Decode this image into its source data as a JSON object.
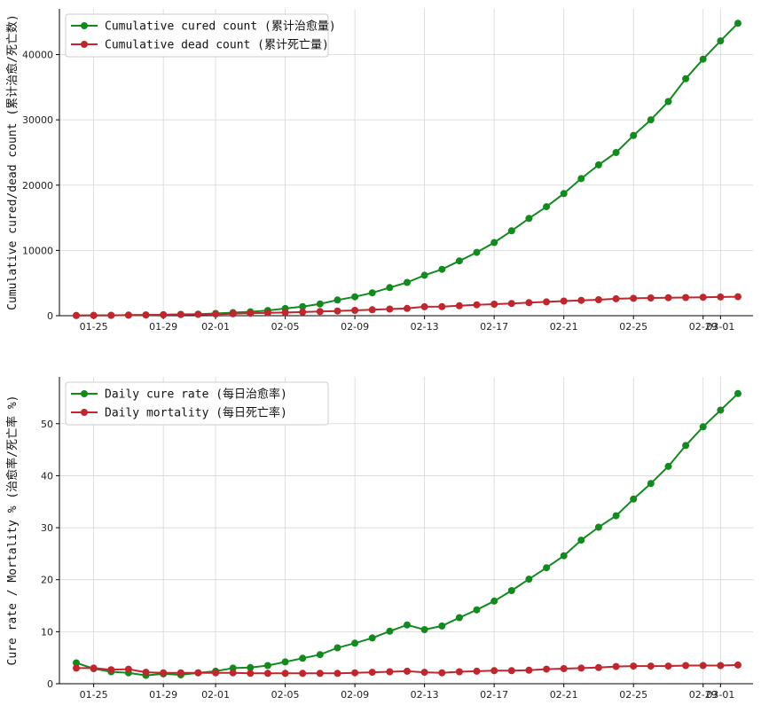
{
  "chart_data": [
    {
      "type": "line",
      "ylabel": "Cumulative cured/dead count (累计治愈/死亡数)",
      "ylim": [
        0,
        47000
      ],
      "yticks": [
        0,
        10000,
        20000,
        30000,
        40000
      ],
      "grid": true,
      "legend_position": "top-left",
      "x": [
        "01-24",
        "01-25",
        "01-26",
        "01-27",
        "01-28",
        "01-29",
        "01-30",
        "01-31",
        "02-01",
        "02-02",
        "02-03",
        "02-04",
        "02-05",
        "02-06",
        "02-07",
        "02-08",
        "02-09",
        "02-10",
        "02-11",
        "02-12",
        "02-13",
        "02-14",
        "02-15",
        "02-16",
        "02-17",
        "02-18",
        "02-19",
        "02-20",
        "02-21",
        "02-22",
        "02-23",
        "02-24",
        "02-25",
        "02-26",
        "02-27",
        "02-28",
        "02-29",
        "03-01",
        "03-02"
      ],
      "xtick_labels": [
        "01-25",
        "01-29",
        "02-01",
        "02-05",
        "02-09",
        "02-13",
        "02-17",
        "02-21",
        "02-25",
        "02-29",
        "03-01"
      ],
      "series": [
        {
          "name": "Cumulative cured count (累计治愈量)",
          "color": "#128a1e",
          "values": [
            40,
            50,
            60,
            100,
            120,
            150,
            200,
            250,
            340,
            470,
            600,
            800,
            1100,
            1400,
            1800,
            2400,
            2900,
            3500,
            4300,
            5100,
            6200,
            7100,
            8400,
            9700,
            11200,
            13000,
            14900,
            16700,
            18700,
            21000,
            23100,
            25000,
            27600,
            30000,
            32800,
            36300,
            39300,
            42100,
            44800
          ]
        },
        {
          "name": "Cumulative dead count (累计死亡量)",
          "color": "#c0262d",
          "values": [
            25,
            40,
            55,
            80,
            105,
            130,
            170,
            210,
            250,
            300,
            360,
            430,
            490,
            560,
            640,
            720,
            810,
            910,
            1020,
            1110,
            1370,
            1380,
            1520,
            1670,
            1770,
            1870,
            2000,
            2120,
            2240,
            2350,
            2440,
            2590,
            2660,
            2710,
            2760,
            2790,
            2830,
            2870,
            2910
          ]
        }
      ]
    },
    {
      "type": "line",
      "ylabel": "Cure rate / Mortality % (治愈率/死亡率 %)",
      "ylim": [
        0,
        59
      ],
      "yticks": [
        0,
        10,
        20,
        30,
        40,
        50
      ],
      "grid": true,
      "legend_position": "top-left",
      "x": [
        "01-24",
        "01-25",
        "01-26",
        "01-27",
        "01-28",
        "01-29",
        "01-30",
        "01-31",
        "02-01",
        "02-02",
        "02-03",
        "02-04",
        "02-05",
        "02-06",
        "02-07",
        "02-08",
        "02-09",
        "02-10",
        "02-11",
        "02-12",
        "02-13",
        "02-14",
        "02-15",
        "02-16",
        "02-17",
        "02-18",
        "02-19",
        "02-20",
        "02-21",
        "02-22",
        "02-23",
        "02-24",
        "02-25",
        "02-26",
        "02-27",
        "02-28",
        "02-29",
        "03-01",
        "03-02"
      ],
      "xtick_labels": [
        "01-25",
        "01-29",
        "02-01",
        "02-05",
        "02-09",
        "02-13",
        "02-17",
        "02-21",
        "02-25",
        "02-29",
        "03-01"
      ],
      "series": [
        {
          "name": "Daily cure rate (每日治愈率)",
          "color": "#128a1e",
          "values": [
            4.0,
            2.9,
            2.3,
            2.1,
            1.6,
            1.9,
            1.7,
            2.1,
            2.4,
            3.0,
            3.1,
            3.5,
            4.2,
            4.9,
            5.6,
            6.9,
            7.8,
            8.8,
            10.1,
            11.3,
            10.4,
            11.1,
            12.7,
            14.2,
            15.9,
            17.9,
            20.1,
            22.3,
            24.6,
            27.6,
            30.1,
            32.3,
            35.5,
            38.5,
            41.8,
            45.8,
            49.4,
            52.6,
            55.8
          ]
        },
        {
          "name": "Daily mortality (每日死亡率)",
          "color": "#c0262d",
          "values": [
            3.0,
            3.0,
            2.7,
            2.8,
            2.2,
            2.1,
            2.1,
            2.1,
            2.1,
            2.1,
            2.0,
            2.0,
            2.0,
            2.0,
            2.0,
            2.0,
            2.1,
            2.2,
            2.3,
            2.4,
            2.2,
            2.1,
            2.3,
            2.4,
            2.5,
            2.5,
            2.6,
            2.8,
            2.9,
            3.0,
            3.1,
            3.3,
            3.4,
            3.4,
            3.4,
            3.5,
            3.5,
            3.5,
            3.6
          ]
        }
      ]
    }
  ]
}
